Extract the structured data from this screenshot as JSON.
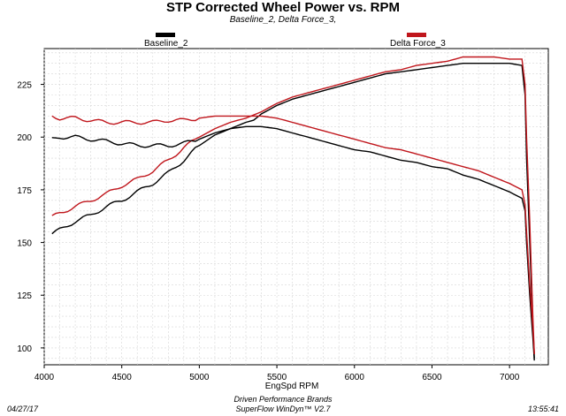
{
  "chart_data": {
    "type": "line",
    "title": "STP Corrected Wheel Power vs. RPM",
    "subtitle": "Baseline_2, Delta Force_3,",
    "xlabel": "EngSpd RPM",
    "ylabel": "",
    "xlim": [
      4000,
      7250
    ],
    "ylim": [
      92,
      242
    ],
    "x_ticks": [
      4000,
      4500,
      5000,
      5500,
      6000,
      6500,
      7000
    ],
    "y_ticks": [
      100,
      125,
      150,
      175,
      200,
      225
    ],
    "grid": true,
    "legend_position": "top",
    "series": [
      {
        "name": "Baseline_2",
        "color": "#000000",
        "metric": "power",
        "points": [
          [
            4050,
            154
          ],
          [
            4100,
            156
          ],
          [
            4200,
            160
          ],
          [
            4300,
            163
          ],
          [
            4400,
            167
          ],
          [
            4500,
            170
          ],
          [
            4600,
            174
          ],
          [
            4700,
            178
          ],
          [
            4800,
            183
          ],
          [
            4900,
            189
          ],
          [
            5000,
            196
          ],
          [
            5100,
            201
          ],
          [
            5200,
            204
          ],
          [
            5300,
            207
          ],
          [
            5350,
            208
          ],
          [
            5400,
            211
          ],
          [
            5500,
            215
          ],
          [
            5600,
            218
          ],
          [
            5700,
            220
          ],
          [
            5800,
            222
          ],
          [
            5900,
            224
          ],
          [
            6000,
            226
          ],
          [
            6100,
            228
          ],
          [
            6200,
            230
          ],
          [
            6300,
            231
          ],
          [
            6400,
            232
          ],
          [
            6500,
            233
          ],
          [
            6600,
            234
          ],
          [
            6700,
            235
          ],
          [
            6800,
            235
          ],
          [
            6900,
            235
          ],
          [
            7000,
            235
          ],
          [
            7080,
            234
          ],
          [
            7100,
            220
          ],
          [
            7110,
            190
          ],
          [
            7130,
            150
          ],
          [
            7150,
            110
          ],
          [
            7160,
            95
          ]
        ]
      },
      {
        "name": "Delta Force_3",
        "color": "#c0161c",
        "metric": "power",
        "points": [
          [
            4050,
            162
          ],
          [
            4100,
            164
          ],
          [
            4200,
            167
          ],
          [
            4300,
            170
          ],
          [
            4400,
            173
          ],
          [
            4500,
            177
          ],
          [
            4600,
            180
          ],
          [
            4700,
            184
          ],
          [
            4800,
            189
          ],
          [
            4900,
            195
          ],
          [
            5000,
            200
          ],
          [
            5100,
            204
          ],
          [
            5200,
            207
          ],
          [
            5300,
            209
          ],
          [
            5400,
            212
          ],
          [
            5500,
            216
          ],
          [
            5600,
            219
          ],
          [
            5700,
            221
          ],
          [
            5800,
            223
          ],
          [
            5900,
            225
          ],
          [
            6000,
            227
          ],
          [
            6100,
            229
          ],
          [
            6200,
            231
          ],
          [
            6300,
            232
          ],
          [
            6400,
            234
          ],
          [
            6500,
            235
          ],
          [
            6600,
            236
          ],
          [
            6700,
            238
          ],
          [
            6800,
            238
          ],
          [
            6900,
            238
          ],
          [
            7000,
            237
          ],
          [
            7080,
            237
          ],
          [
            7100,
            225
          ],
          [
            7110,
            200
          ],
          [
            7130,
            160
          ],
          [
            7150,
            115
          ],
          [
            7160,
            97
          ]
        ]
      },
      {
        "name": "Baseline_2",
        "color": "#000000",
        "metric": "torque",
        "points": [
          [
            4050,
            199
          ],
          [
            4100,
            200
          ],
          [
            4200,
            200
          ],
          [
            4300,
            199
          ],
          [
            4400,
            198
          ],
          [
            4500,
            197
          ],
          [
            4600,
            196
          ],
          [
            4700,
            196
          ],
          [
            4800,
            196
          ],
          [
            4900,
            197
          ],
          [
            5000,
            199
          ],
          [
            5100,
            202
          ],
          [
            5200,
            204
          ],
          [
            5300,
            205
          ],
          [
            5400,
            205
          ],
          [
            5500,
            204
          ],
          [
            5600,
            202
          ],
          [
            5700,
            200
          ],
          [
            5800,
            198
          ],
          [
            5900,
            196
          ],
          [
            6000,
            194
          ],
          [
            6100,
            193
          ],
          [
            6200,
            191
          ],
          [
            6300,
            189
          ],
          [
            6400,
            188
          ],
          [
            6500,
            186
          ],
          [
            6600,
            185
          ],
          [
            6700,
            182
          ],
          [
            6800,
            180
          ],
          [
            6900,
            177
          ],
          [
            7000,
            174
          ],
          [
            7080,
            171
          ],
          [
            7100,
            165
          ],
          [
            7110,
            150
          ],
          [
            7130,
            125
          ],
          [
            7150,
            105
          ],
          [
            7160,
            94
          ]
        ]
      },
      {
        "name": "Delta Force_3",
        "color": "#c0161c",
        "metric": "torque",
        "points": [
          [
            4050,
            210
          ],
          [
            4100,
            209
          ],
          [
            4200,
            209
          ],
          [
            4300,
            208
          ],
          [
            4400,
            207
          ],
          [
            4500,
            207
          ],
          [
            4600,
            207
          ],
          [
            4700,
            207
          ],
          [
            4800,
            208
          ],
          [
            4900,
            208
          ],
          [
            5000,
            209
          ],
          [
            5100,
            210
          ],
          [
            5200,
            210
          ],
          [
            5300,
            210
          ],
          [
            5400,
            210
          ],
          [
            5500,
            209
          ],
          [
            5600,
            207
          ],
          [
            5700,
            205
          ],
          [
            5800,
            203
          ],
          [
            5900,
            201
          ],
          [
            6000,
            199
          ],
          [
            6100,
            197
          ],
          [
            6200,
            195
          ],
          [
            6300,
            194
          ],
          [
            6400,
            192
          ],
          [
            6500,
            190
          ],
          [
            6600,
            188
          ],
          [
            6700,
            186
          ],
          [
            6800,
            184
          ],
          [
            6900,
            181
          ],
          [
            7000,
            178
          ],
          [
            7080,
            175
          ],
          [
            7100,
            168
          ],
          [
            7110,
            155
          ],
          [
            7130,
            130
          ],
          [
            7150,
            110
          ],
          [
            7160,
            97
          ]
        ]
      }
    ]
  },
  "footer": {
    "date": "04/27/17",
    "company": "Driven Performance Brands",
    "software": "SuperFlow WinDyn™ V2.7",
    "time": "13:55:41"
  }
}
